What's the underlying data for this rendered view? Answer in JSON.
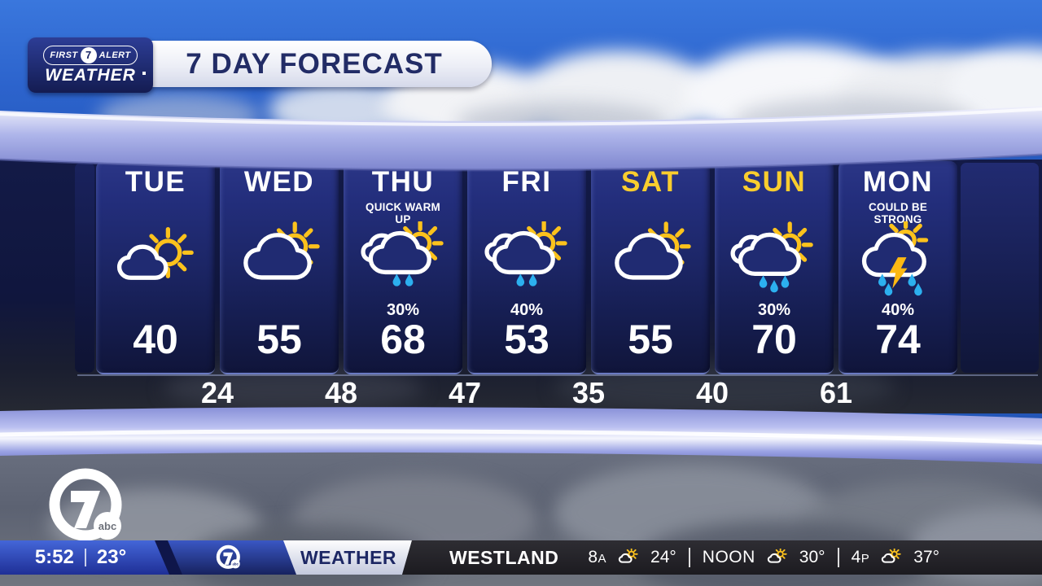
{
  "header": {
    "brand": {
      "first": "FIRST",
      "seven": "7",
      "alert": "ALERT",
      "weather": "WEATHER"
    },
    "title": "7 DAY FORECAST"
  },
  "forecast": {
    "days": [
      {
        "name": "TUE",
        "weekend": false,
        "note": "",
        "icon": "mostly-sunny",
        "precip": "",
        "high": "40"
      },
      {
        "name": "WED",
        "weekend": false,
        "note": "",
        "icon": "partly-cloudy",
        "precip": "",
        "high": "55"
      },
      {
        "name": "THU",
        "weekend": false,
        "note": "QUICK WARM UP",
        "icon": "showers-sun",
        "precip": "30%",
        "high": "68"
      },
      {
        "name": "FRI",
        "weekend": false,
        "note": "",
        "icon": "showers-sun",
        "precip": "40%",
        "high": "53"
      },
      {
        "name": "SAT",
        "weekend": true,
        "note": "",
        "icon": "partly-cloudy",
        "precip": "",
        "high": "55"
      },
      {
        "name": "SUN",
        "weekend": true,
        "note": "",
        "icon": "rain-sun",
        "precip": "30%",
        "high": "70"
      },
      {
        "name": "MON",
        "weekend": false,
        "note": "COULD BE STRONG",
        "icon": "thunderstorm-sun",
        "precip": "40%",
        "high": "74"
      }
    ],
    "lows": [
      "24",
      "48",
      "47",
      "35",
      "40",
      "61"
    ]
  },
  "station": {
    "seven": "7",
    "abc": "abc"
  },
  "ticker": {
    "time": "5:52",
    "temp_now": "23°",
    "section": "WEATHER",
    "location": "WESTLAND",
    "hours": [
      {
        "label": "8",
        "suffix": "A",
        "icon": "partly-cloudy",
        "temp": "24°"
      },
      {
        "label": "NOON",
        "suffix": "",
        "icon": "partly-cloudy",
        "temp": "30°"
      },
      {
        "label": "4",
        "suffix": "P",
        "icon": "partly-cloudy",
        "temp": "37°"
      }
    ]
  },
  "colors": {
    "weekday_name": "#ffffff",
    "weekend_name": "#f9cd2e",
    "sun": "#fcc21c",
    "rain_drop": "#2cb0ef",
    "bolt": "#fdb913",
    "navy_accent": "#1d2764"
  }
}
